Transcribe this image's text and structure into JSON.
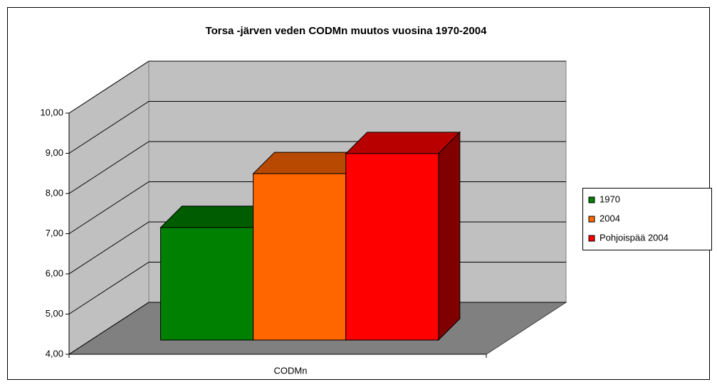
{
  "chart_data": {
    "type": "bar3d",
    "title": "Torsa -järven veden CODMn muutos vuosina 1970-2004",
    "categories": [
      "CODMn"
    ],
    "series": [
      {
        "name": "1970",
        "color": "#008000",
        "values": [
          6.8
        ]
      },
      {
        "name": "2004",
        "color": "#ff6600",
        "values": [
          8.14
        ]
      },
      {
        "name": "Pohjoispää 2004",
        "color": "#ff0000",
        "values": [
          8.64
        ]
      }
    ],
    "ylim": [
      4,
      10
    ],
    "yticks": [
      {
        "value": 4,
        "label": "4,00"
      },
      {
        "value": 5,
        "label": "5,00"
      },
      {
        "value": 6,
        "label": "6,00"
      },
      {
        "value": 7,
        "label": "7,00"
      },
      {
        "value": 8,
        "label": "8,00"
      },
      {
        "value": 9,
        "label": "9,00"
      },
      {
        "value": 10,
        "label": "10,00"
      }
    ],
    "grid": true,
    "legend": "right"
  }
}
